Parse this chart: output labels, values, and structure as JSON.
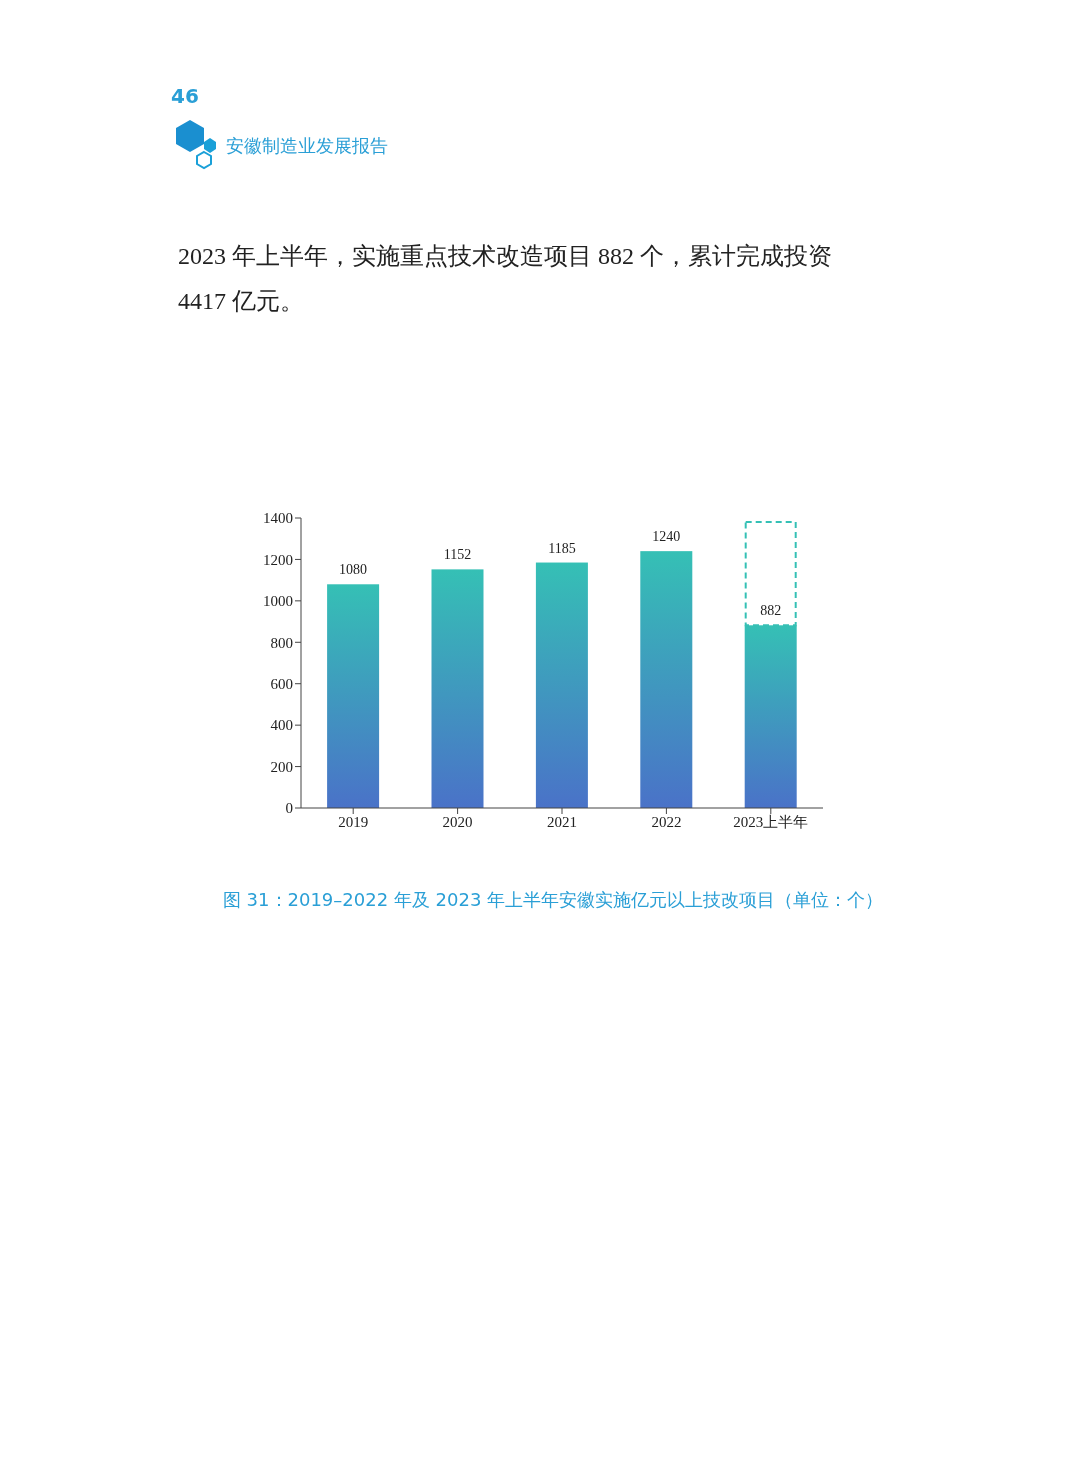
{
  "chart_data": {
    "type": "bar",
    "title": "图 31：2019–2022 年及 2023 年上半年安徽实施亿元以上技改项目（单位：个）",
    "annotations": [
      "46",
      "安徽制造业发展报告",
      "2023 年上半年，实施重点技术改造项目 882 个，累计完成投资 4417 亿元。"
    ],
    "categories": [
      "2019",
      "2020",
      "2021",
      "2022",
      "2023上半年"
    ],
    "values": [
      1080,
      1152,
      1185,
      1240,
      882
    ],
    "color": "#35c0b5",
    "ylim": [
      0,
      1400
    ],
    "yticks": [
      0,
      200,
      400,
      600,
      800,
      1000,
      1200,
      1400
    ],
    "data_labels": true
  }
}
